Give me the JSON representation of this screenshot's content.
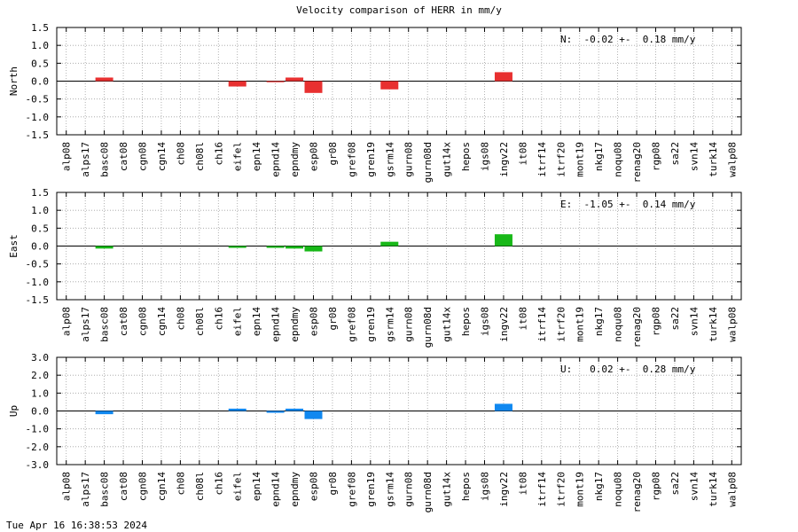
{
  "title": "Velocity comparison of HERR in mm/y",
  "timestamp": "Tue Apr 16 16:38:53 2024",
  "chart_data": [
    {
      "type": "bar",
      "ylabel": "North",
      "ylim": [
        -1.5,
        1.5
      ],
      "yticks": [
        "1.5",
        "1.0",
        "0.5",
        "0.0",
        "-0.5",
        "-1.0",
        "-1.5"
      ],
      "grid": true,
      "color": "#e83030",
      "annotation": "N:  -0.02 +-  0.18 mm/y",
      "categories": [
        "alp08",
        "alps17",
        "basc08",
        "cat08",
        "cgn08",
        "cgn14",
        "ch08",
        "ch08l",
        "ch16",
        "eifel",
        "epn14",
        "epnd14",
        "epndmy",
        "esp08",
        "gr08",
        "gref08",
        "gren19",
        "gsrm14",
        "gurn08",
        "gurn08d",
        "gut14x",
        "hepos",
        "igs08",
        "ingv22",
        "it08",
        "itrf14",
        "itrf20",
        "mont19",
        "nkg17",
        "noqu08",
        "renag20",
        "rgp08",
        "sa22",
        "svn14",
        "turk14",
        "walp08"
      ],
      "values": [
        0,
        0,
        0.1,
        0,
        0,
        0,
        0,
        0,
        0,
        -0.15,
        0,
        -0.03,
        0.1,
        -0.33,
        0,
        0,
        0,
        -0.23,
        0,
        0,
        0,
        0,
        0,
        0.25,
        0,
        0,
        0,
        0,
        0,
        0,
        0,
        0,
        0,
        0,
        0,
        0
      ]
    },
    {
      "type": "bar",
      "ylabel": "East",
      "ylim": [
        -1.5,
        1.5
      ],
      "yticks": [
        "1.5",
        "1.0",
        "0.5",
        "0.0",
        "-0.5",
        "-1.0",
        "-1.5"
      ],
      "grid": true,
      "color": "#18b818",
      "annotation": "E:  -1.05 +-  0.14 mm/y",
      "categories": [
        "alp08",
        "alps17",
        "basc08",
        "cat08",
        "cgn08",
        "cgn14",
        "ch08",
        "ch08l",
        "ch16",
        "eifel",
        "epn14",
        "epnd14",
        "epndmy",
        "esp08",
        "gr08",
        "gref08",
        "gren19",
        "gsrm14",
        "gurn08",
        "gurn08d",
        "gut14x",
        "hepos",
        "igs08",
        "ingv22",
        "it08",
        "itrf14",
        "itrf20",
        "mont19",
        "nkg17",
        "noqu08",
        "renag20",
        "rgp08",
        "sa22",
        "svn14",
        "turk14",
        "walp08"
      ],
      "values": [
        0,
        0,
        -0.07,
        0,
        0,
        0,
        0,
        0,
        0,
        -0.05,
        0,
        -0.05,
        -0.07,
        -0.15,
        0,
        0,
        0,
        0.12,
        0,
        0,
        0,
        0,
        0,
        0.33,
        0,
        0,
        0,
        0,
        0,
        0,
        0,
        0,
        0,
        0,
        0,
        0
      ]
    },
    {
      "type": "bar",
      "ylabel": "Up",
      "ylim": [
        -3.0,
        3.0
      ],
      "yticks": [
        "3.0",
        "2.0",
        "1.0",
        "0.0",
        "-1.0",
        "-2.0",
        "-3.0"
      ],
      "grid": true,
      "color": "#1088f0",
      "annotation": "U:   0.02 +-  0.28 mm/y",
      "categories": [
        "alp08",
        "alps17",
        "basc08",
        "cat08",
        "cgn08",
        "cgn14",
        "ch08",
        "ch08l",
        "ch16",
        "eifel",
        "epn14",
        "epnd14",
        "epndmy",
        "esp08",
        "gr08",
        "gref08",
        "gren19",
        "gsrm14",
        "gurn08",
        "gurn08d",
        "gut14x",
        "hepos",
        "igs08",
        "ingv22",
        "it08",
        "itrf14",
        "itrf20",
        "mont19",
        "nkg17",
        "noqu08",
        "renag20",
        "rgp08",
        "sa22",
        "svn14",
        "turk14",
        "walp08"
      ],
      "values": [
        0,
        0,
        -0.18,
        0,
        0,
        0,
        0,
        0,
        0,
        0.13,
        0,
        -0.1,
        0.13,
        -0.45,
        0,
        0,
        0,
        0,
        0,
        0,
        0,
        0,
        0,
        0.4,
        0,
        0,
        0,
        0,
        0,
        0,
        0,
        0,
        0,
        0,
        0,
        0
      ]
    }
  ]
}
